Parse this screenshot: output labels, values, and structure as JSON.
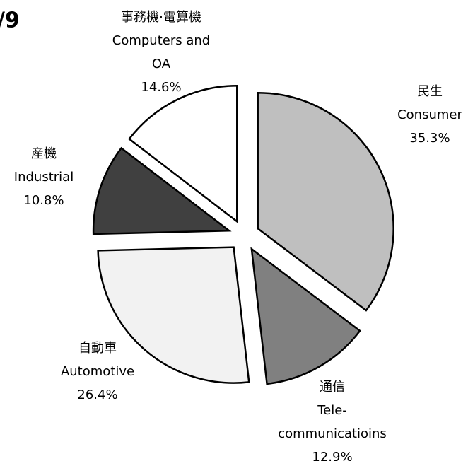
{
  "chart_data": {
    "type": "pie",
    "title": "/9",
    "categories": [
      [
        "民生",
        "Consumer"
      ],
      [
        "通信",
        "Tele-",
        "communicatioins"
      ],
      [
        "自動車",
        "Automotive"
      ],
      [
        "産機",
        "Industrial"
      ],
      [
        "事務機·電算機",
        "Computers and",
        "OA"
      ]
    ],
    "values": [
      35.3,
      12.9,
      26.4,
      10.8,
      14.6
    ],
    "value_labels": [
      "35.3%",
      "12.9%",
      "26.4%",
      "10.8%",
      "14.6%"
    ],
    "colors": [
      "#bfbfbf",
      "#808080",
      "#f2f2f2",
      "#404040",
      "#ffffff"
    ]
  }
}
